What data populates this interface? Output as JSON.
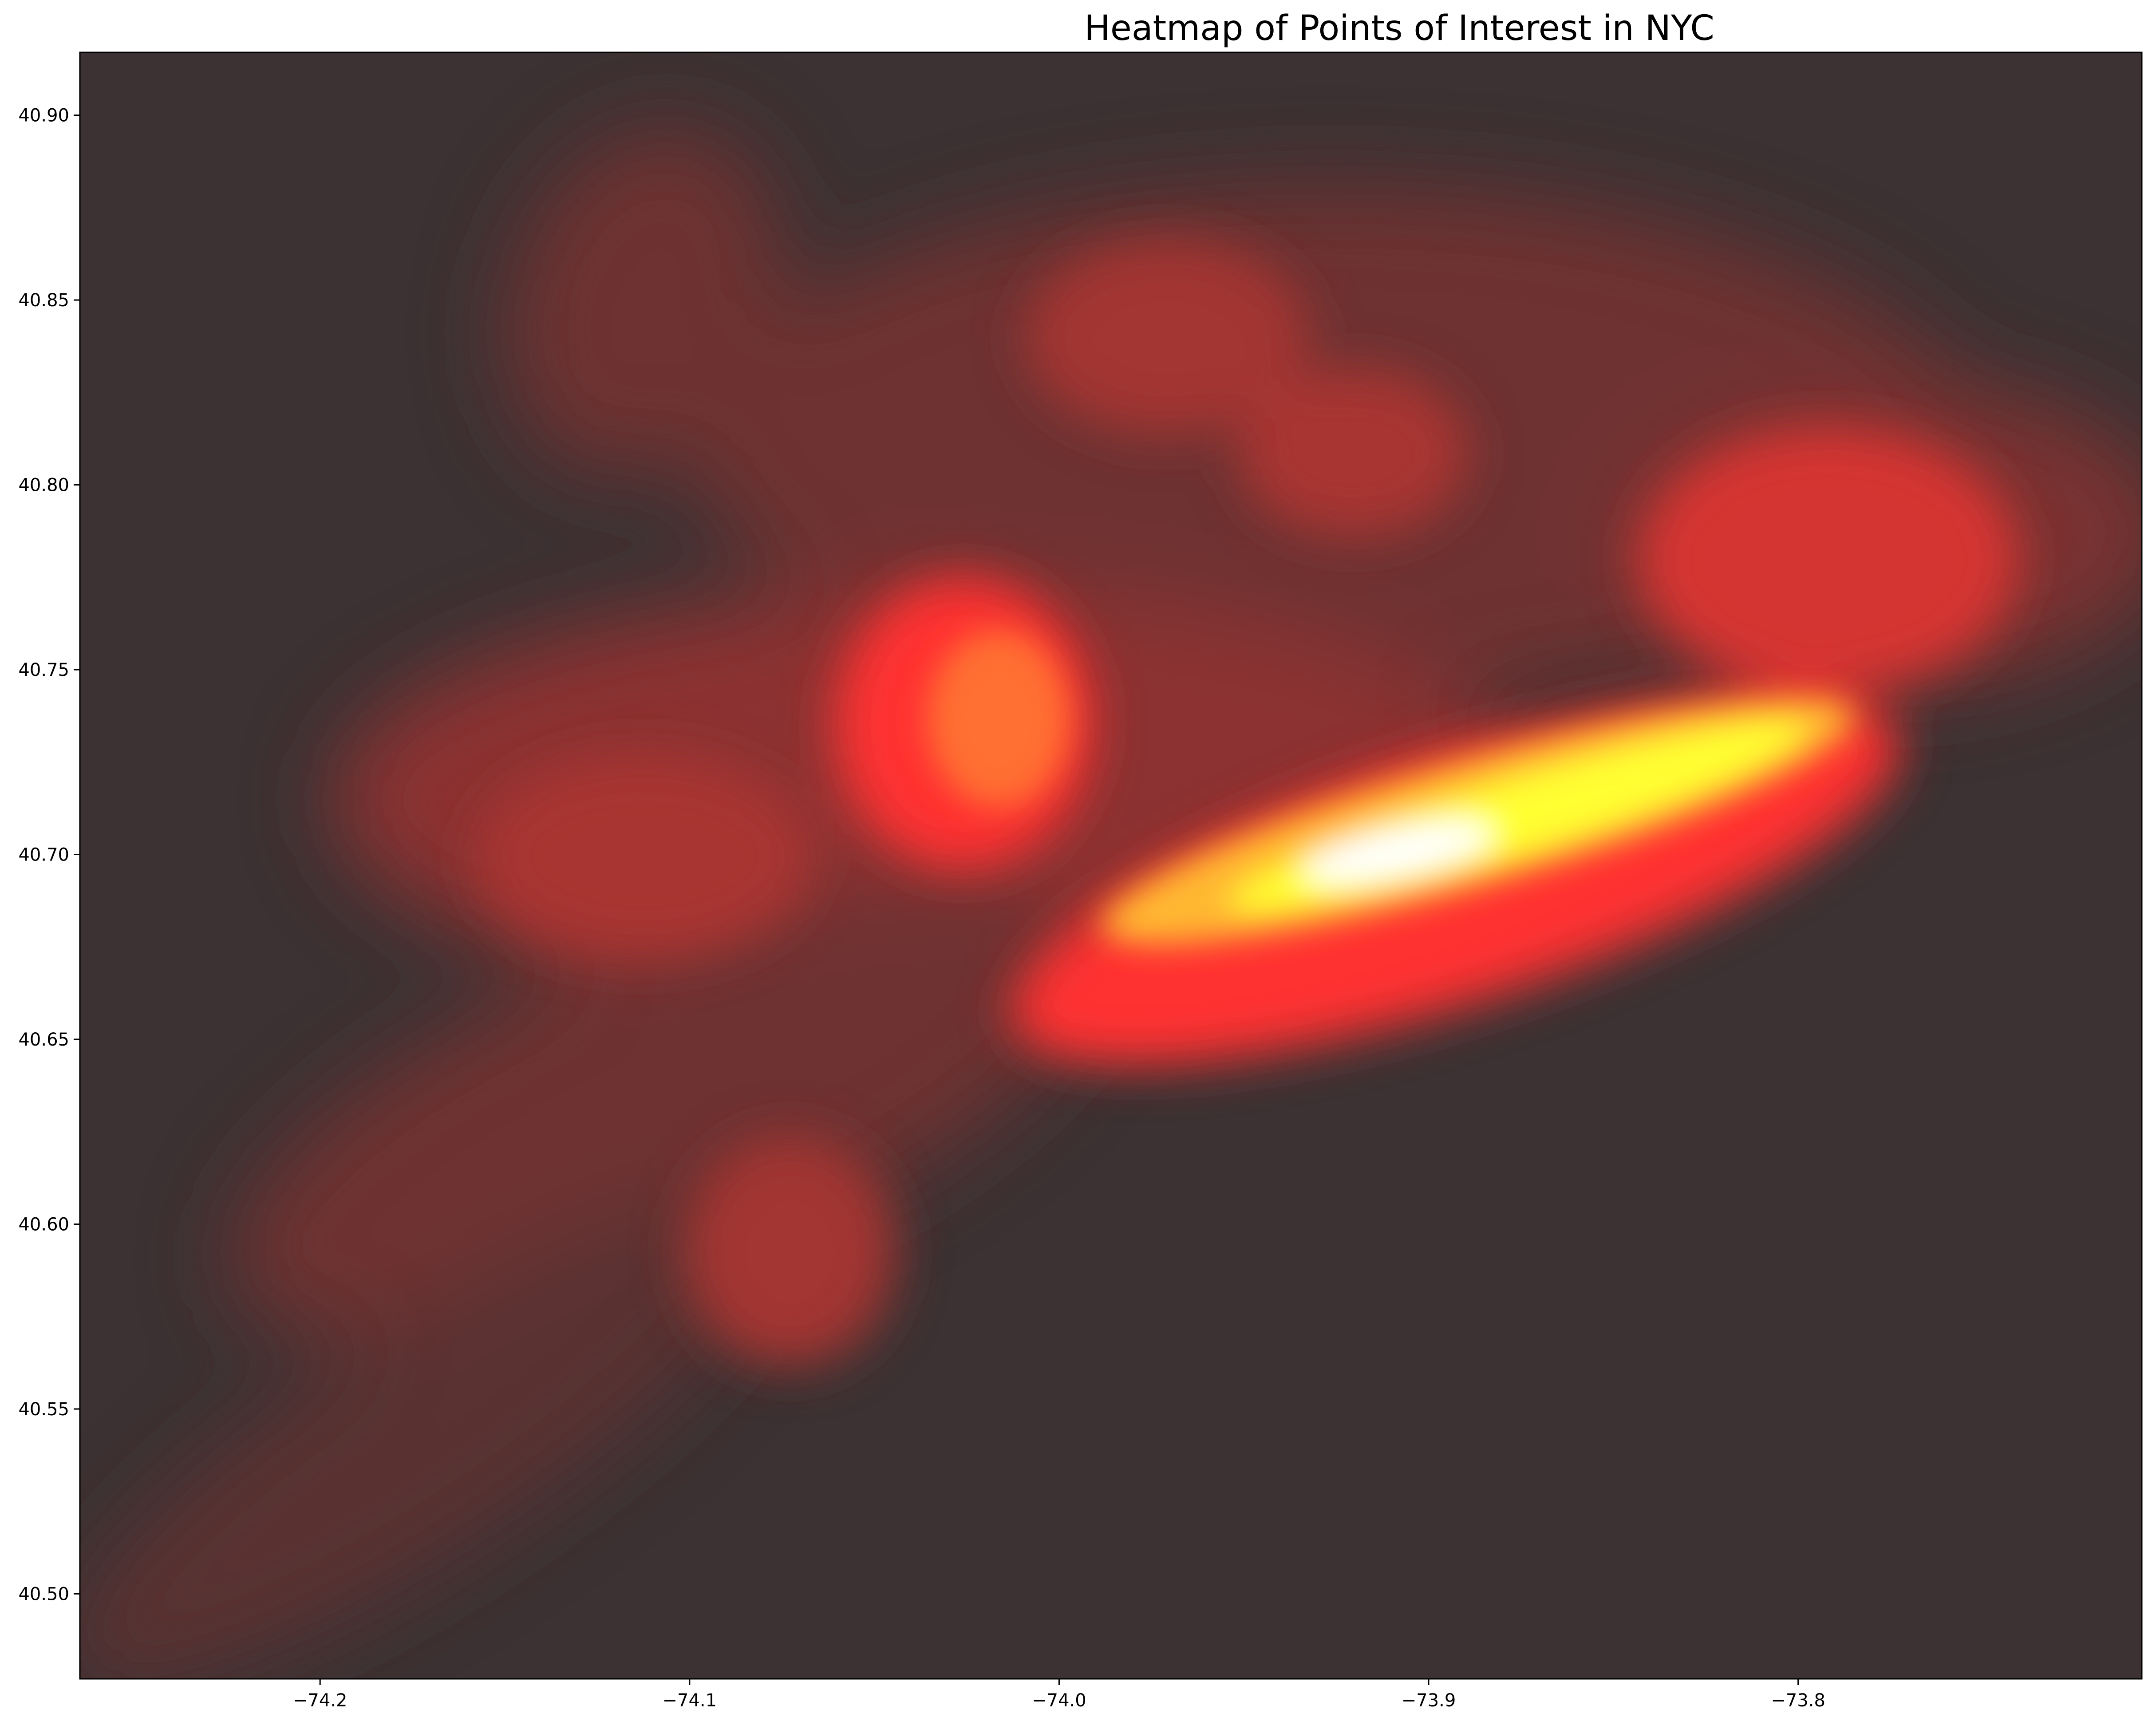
{
  "chart_data": {
    "type": "heatmap",
    "title": "Heatmap of Points of Interest in NYC",
    "xlabel": "",
    "ylabel": "",
    "xlim": [
      -74.265,
      -73.707
    ],
    "ylim": [
      40.477,
      40.917
    ],
    "x_ticks": [
      -74.2,
      -74.1,
      -74.0,
      -73.9,
      -73.8
    ],
    "x_tick_labels": [
      "−74.2",
      "−74.1",
      "−74.0",
      "−73.9",
      "−73.8"
    ],
    "y_ticks": [
      40.5,
      40.55,
      40.6,
      40.65,
      40.7,
      40.75,
      40.8,
      40.85,
      40.9
    ],
    "y_tick_labels": [
      "40.50",
      "40.55",
      "40.60",
      "40.65",
      "40.70",
      "40.75",
      "40.80",
      "40.85",
      "40.90"
    ],
    "colormap": "hot",
    "alpha": 0.8,
    "grid": false,
    "colors": {
      "background": "#3c3233",
      "low": "#3c3233",
      "mid_red": "#ff3333",
      "orange": "#ff6f33",
      "yellow": "#ffff33",
      "peak": "#ffffff"
    },
    "hotspots": [
      {
        "x": -73.91,
        "y": 40.7,
        "intensity": 1.0
      },
      {
        "x": -73.84,
        "y": 40.735,
        "intensity": 0.9
      },
      {
        "x": -73.96,
        "y": 40.69,
        "intensity": 0.8
      },
      {
        "x": -74.01,
        "y": 40.745,
        "intensity": 0.55
      },
      {
        "x": -73.79,
        "y": 40.78,
        "intensity": 0.5
      },
      {
        "x": -73.93,
        "y": 40.81,
        "intensity": 0.35
      },
      {
        "x": -73.96,
        "y": 40.84,
        "intensity": 0.3
      },
      {
        "x": -74.11,
        "y": 40.71,
        "intensity": 0.32
      },
      {
        "x": -74.07,
        "y": 40.6,
        "intensity": 0.3
      },
      {
        "x": -74.12,
        "y": 40.86,
        "intensity": 0.25
      },
      {
        "x": -74.2,
        "y": 40.51,
        "intensity": 0.15
      }
    ]
  }
}
